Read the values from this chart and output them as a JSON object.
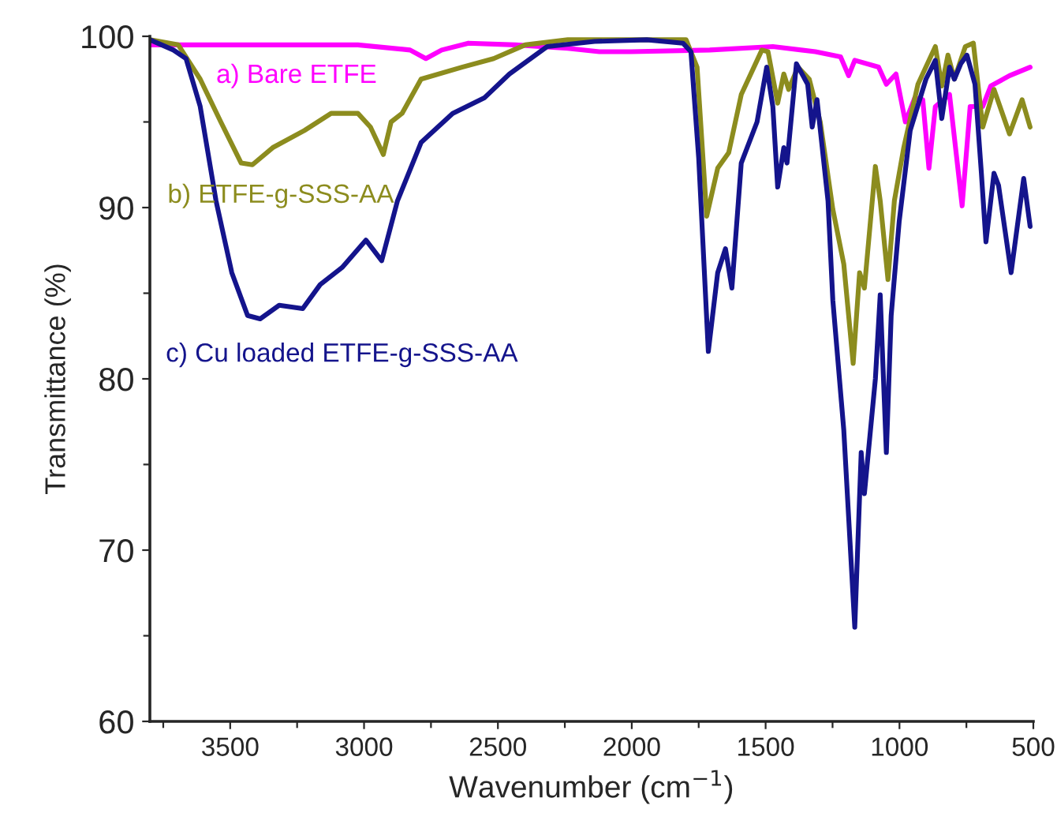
{
  "chart_data": {
    "type": "line",
    "xlabel": "Wavenumber (cm$^{−1}$)",
    "ylabel": "Transmittance (%)",
    "xlim": [
      3800,
      500
    ],
    "ylim": [
      60,
      100
    ],
    "xticks": [
      {
        "value": 3750,
        "label": null
      },
      3500,
      {
        "value": 3250,
        "label": null
      },
      3000,
      {
        "value": 2750,
        "label": null
      },
      2500,
      {
        "value": 2250,
        "label": null
      },
      2000,
      {
        "value": 1750,
        "label": null
      },
      1500,
      {
        "value": 1250,
        "label": null
      },
      1000,
      {
        "value": 750,
        "label": null
      },
      500
    ],
    "yticks": [
      60,
      {
        "value": 65,
        "label": null
      },
      70,
      {
        "value": 75,
        "label": null
      },
      80,
      {
        "value": 85,
        "label": null
      },
      90,
      {
        "value": 95,
        "label": null
      },
      100
    ],
    "grid": false,
    "legend": false,
    "marker": "none",
    "line_style": "solid",
    "series": [
      {
        "name": "a) Bare ETFE",
        "color": "#ff00ff",
        "x": [
          3800,
          3612,
          3417,
          3223,
          3023,
          2828,
          2769,
          2710,
          2610,
          2433,
          2239,
          2121,
          2003,
          1709,
          1473,
          1314,
          1220,
          1190,
          1167,
          1078,
          1049,
          1013,
          978,
          943,
          913,
          890,
          866,
          813,
          766,
          736,
          689,
          659,
          589,
          512
        ],
        "values": [
          99.5,
          99.5,
          99.5,
          99.5,
          99.5,
          99.2,
          98.7,
          99.2,
          99.6,
          99.5,
          99.3,
          99.1,
          99.1,
          99.2,
          99.4,
          99.1,
          98.8,
          97.7,
          98.6,
          98.2,
          97.2,
          97.8,
          95.0,
          96.4,
          96.3,
          92.3,
          95.9,
          96.6,
          90.1,
          95.9,
          95.9,
          97.1,
          97.7,
          98.2
        ]
      },
      {
        "name": "b) ETFE-g-SSS-AA",
        "color": "#8c8c1e",
        "x": [
          3800,
          3694,
          3612,
          3535,
          3459,
          3417,
          3341,
          3223,
          3123,
          3023,
          2976,
          2928,
          2899,
          2858,
          2787,
          2634,
          2516,
          2398,
          2239,
          1944,
          1797,
          1756,
          1720,
          1679,
          1638,
          1591,
          1514,
          1491,
          1455,
          1432,
          1414,
          1379,
          1337,
          1296,
          1249,
          1208,
          1173,
          1149,
          1131,
          1090,
          1072,
          1043,
          1019,
          984,
          931,
          866,
          842,
          819,
          795,
          754,
          724,
          689,
          647,
          589,
          542,
          512
        ],
        "values": [
          99.8,
          99.5,
          97.5,
          95.0,
          92.6,
          92.5,
          93.5,
          94.5,
          95.5,
          95.5,
          94.7,
          93.1,
          95.0,
          95.5,
          97.5,
          98.2,
          98.7,
          99.5,
          99.8,
          99.8,
          99.8,
          98.2,
          89.5,
          92.3,
          93.2,
          96.6,
          99.2,
          99.1,
          96.1,
          97.8,
          96.9,
          98.2,
          97.5,
          95.0,
          89.9,
          86.7,
          80.9,
          86.2,
          85.3,
          92.4,
          90.4,
          85.8,
          90.4,
          93.5,
          97.2,
          99.4,
          97.1,
          98.9,
          97.5,
          99.4,
          99.6,
          94.7,
          96.9,
          94.3,
          96.3,
          94.7
        ]
      },
      {
        "name": "c) Cu loaded ETFE-g-SSS-AA",
        "color": "#14148c",
        "x": [
          3800,
          3712,
          3665,
          3612,
          3553,
          3494,
          3435,
          3388,
          3317,
          3229,
          3164,
          3082,
          2993,
          2934,
          2875,
          2787,
          2669,
          2551,
          2457,
          2316,
          2139,
          1944,
          1809,
          1779,
          1750,
          1714,
          1679,
          1650,
          1626,
          1591,
          1532,
          1496,
          1473,
          1455,
          1432,
          1420,
          1385,
          1343,
          1326,
          1308,
          1267,
          1249,
          1208,
          1167,
          1143,
          1131,
          1090,
          1072,
          1049,
          1031,
          1001,
          960,
          901,
          866,
          842,
          813,
          795,
          771,
          748,
          718,
          694,
          677,
          647,
          630,
          583,
          536,
          512
        ],
        "values": [
          99.8,
          99.2,
          98.7,
          95.9,
          90.4,
          86.2,
          83.7,
          83.5,
          84.3,
          84.1,
          85.5,
          86.5,
          88.1,
          86.9,
          90.4,
          93.8,
          95.5,
          96.4,
          97.8,
          99.4,
          99.7,
          99.8,
          99.6,
          99.1,
          92.9,
          81.6,
          86.2,
          87.6,
          85.3,
          92.6,
          95.0,
          98.2,
          95.9,
          91.2,
          93.5,
          92.6,
          98.4,
          97.2,
          94.7,
          96.3,
          90.4,
          84.6,
          77.0,
          65.5,
          75.7,
          73.3,
          80.0,
          84.9,
          75.7,
          83.7,
          89.2,
          94.5,
          97.5,
          98.6,
          95.2,
          98.2,
          97.5,
          98.4,
          98.9,
          97.2,
          92.0,
          88.0,
          92.0,
          91.3,
          86.2,
          91.7,
          88.9
        ]
      }
    ]
  }
}
